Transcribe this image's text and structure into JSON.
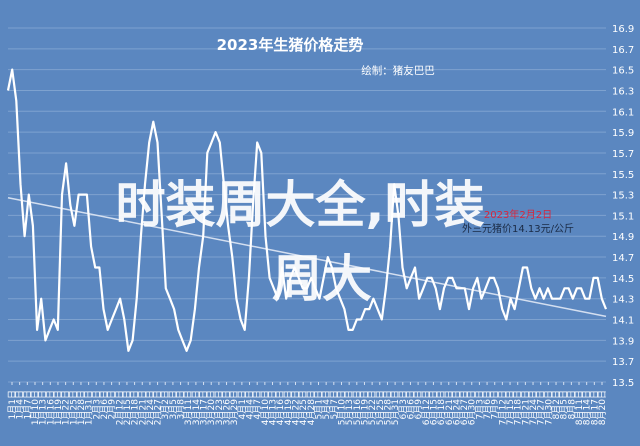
{
  "chart_data": {
    "type": "line",
    "title": "2023年生猪价格走势",
    "subtitle": "绘制：猪友巴巴",
    "annotation": "2023年2月2日\n外三元猪价14.13元/公斤",
    "overlay_text": [
      "时装周大全,时装",
      "周大"
    ],
    "ylim": [
      13.5,
      16.9
    ],
    "y_ticks": [
      "13.5",
      "13.7",
      "13.9",
      "14.1",
      "14.3",
      "14.5",
      "14.7",
      "14.9",
      "15.1",
      "15.3",
      "15.5",
      "15.7",
      "15.9",
      "16.1",
      "16.3",
      "16.5",
      "16.7",
      "16.9"
    ],
    "x_labels": [
      "1月1日",
      "1月4日",
      "1月7日",
      "1月10日",
      "1月13日",
      "1月16日",
      "1月19日",
      "1月22日",
      "1月25日",
      "1月28日",
      "1月31日",
      "2月3日",
      "2月6日",
      "2月9日",
      "2月12日",
      "2月15日",
      "2月18日",
      "2月21日",
      "2月24日",
      "2月27日",
      "3月2日",
      "3月5日",
      "3月8日",
      "3月11日",
      "3月14日",
      "3月17日",
      "3月20日",
      "3月23日",
      "3月26日",
      "3月29日",
      "4月1日",
      "4月4日",
      "4月7日",
      "4月10日",
      "4月13日",
      "4月16日",
      "4月19日",
      "4月22日",
      "4月25日",
      "4月28日",
      "5月1日",
      "5月4日",
      "5月7日",
      "5月10日",
      "5月13日",
      "5月16日",
      "5月19日",
      "5月22日",
      "5月25日",
      "5月28日",
      "5月31日",
      "6月3日",
      "6月6日",
      "6月9日",
      "6月12日",
      "6月15日",
      "6月18日",
      "6月21日",
      "6月24日",
      "6月27日",
      "6月30日",
      "7月3日",
      "7月6日",
      "7月9日",
      "7月12日",
      "7月15日",
      "7月18日",
      "7月21日",
      "7月24日",
      "7月27日",
      "7月30日",
      "8月2日",
      "8月5日",
      "8月8日",
      "8月11日",
      "8月14日",
      "8月17日",
      "8月20日"
    ],
    "series": [
      {
        "name": "",
        "values": [
          16.3,
          16.5,
          16.2,
          15.4,
          14.9,
          15.3,
          15.0,
          14.0,
          14.3,
          13.9,
          14.0,
          14.1,
          14.0,
          15.3,
          15.6,
          15.2,
          15.0,
          15.3,
          15.3,
          15.3,
          14.8,
          14.6,
          14.6,
          14.2,
          14.0,
          14.1,
          14.2,
          14.3,
          14.1,
          13.8,
          13.9,
          14.3,
          14.9,
          15.4,
          15.8,
          16.0,
          15.8,
          15.1,
          14.4,
          14.3,
          14.2,
          14.0,
          13.9,
          13.8,
          13.9,
          14.2,
          14.6,
          14.9,
          15.7,
          15.8,
          15.9,
          15.8,
          15.4,
          15.0,
          14.7,
          14.3,
          14.1,
          14.0,
          14.5,
          15.2,
          15.8,
          15.7,
          14.9,
          14.5,
          14.4,
          14.3,
          14.6,
          14.3,
          14.5,
          14.6,
          14.5,
          14.4,
          14.4,
          14.5,
          14.4,
          14.3,
          14.5,
          14.7,
          14.6,
          14.4,
          14.3,
          14.2,
          14.0,
          14.0,
          14.1,
          14.1,
          14.2,
          14.2,
          14.3,
          14.2,
          14.1,
          14.4,
          14.8,
          15.4,
          15.1,
          14.6,
          14.4,
          14.5,
          14.6,
          14.3,
          14.4,
          14.5,
          14.5,
          14.4,
          14.2,
          14.4,
          14.5,
          14.5,
          14.4,
          14.4,
          14.4,
          14.2,
          14.4,
          14.5,
          14.3,
          14.4,
          14.5,
          14.5,
          14.4,
          14.2,
          14.1,
          14.3,
          14.2,
          14.4,
          14.6,
          14.6,
          14.4,
          14.3,
          14.4,
          14.3,
          14.4,
          14.3,
          14.3,
          14.3,
          14.4,
          14.4,
          14.3,
          14.4,
          14.4,
          14.3,
          14.3,
          14.5,
          14.5,
          14.3,
          14.2
        ]
      }
    ],
    "trendline": [
      15.27,
      14.13
    ]
  }
}
